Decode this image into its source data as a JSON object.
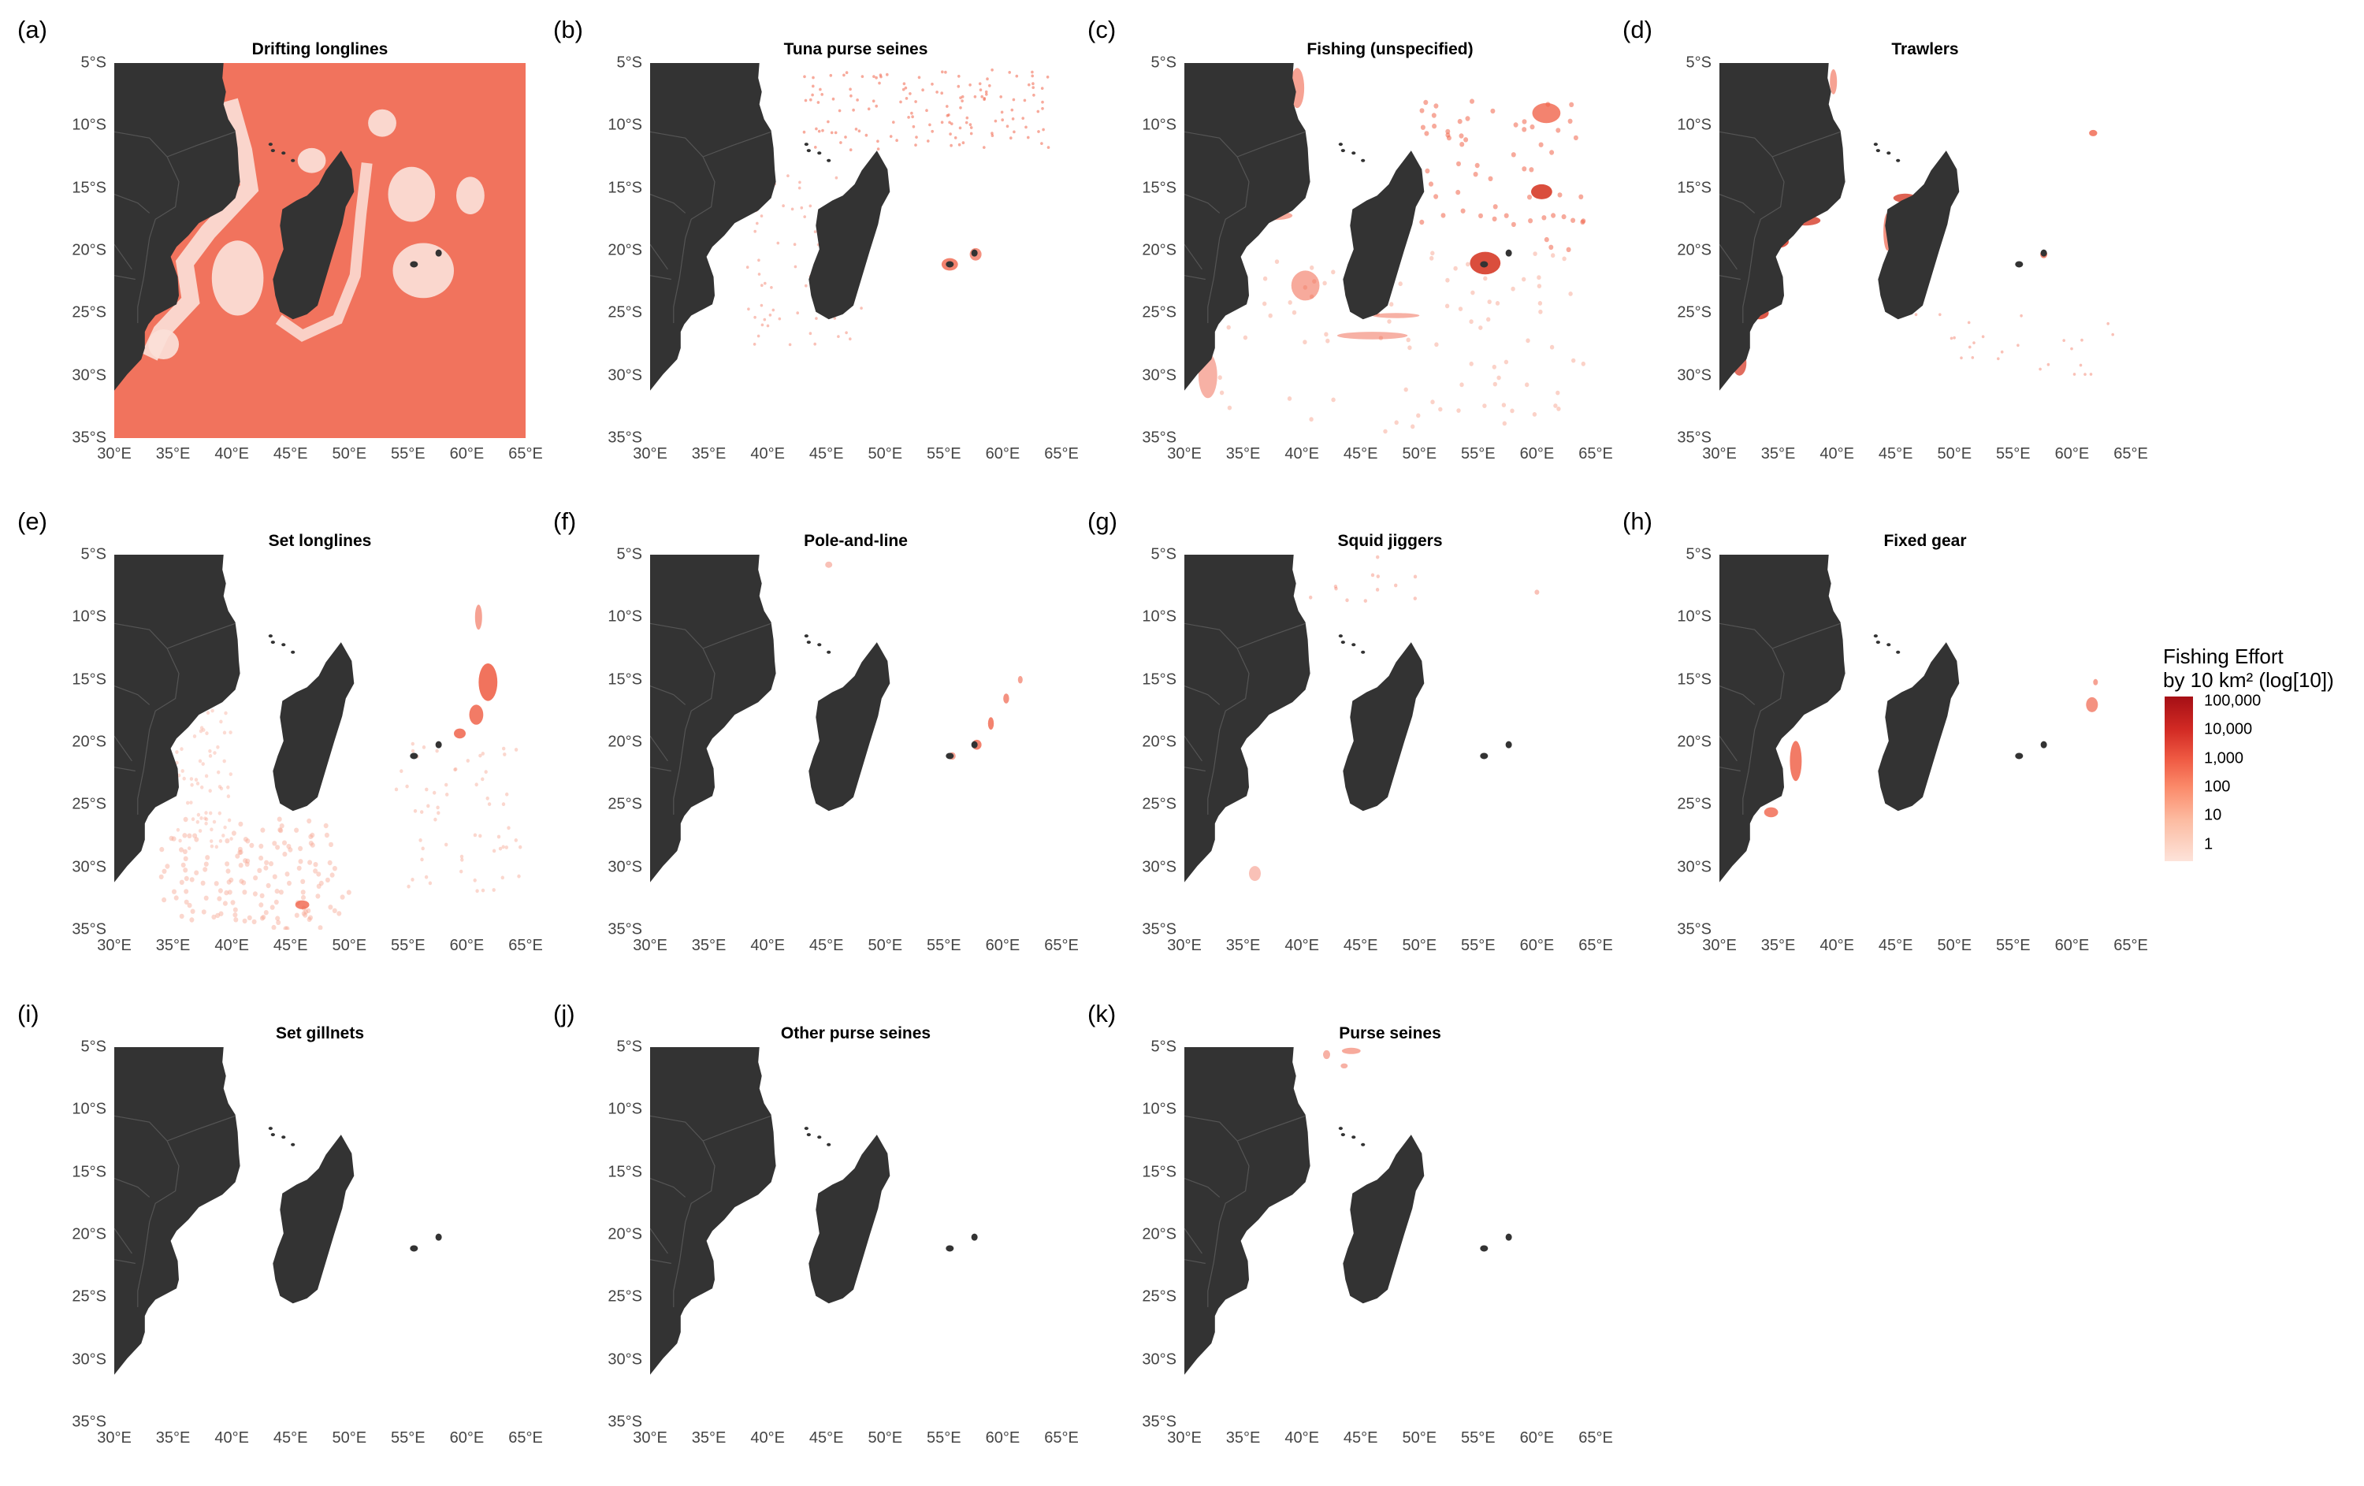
{
  "map_extent": {
    "lon": [
      30,
      65
    ],
    "lat": [
      -35,
      -5
    ]
  },
  "axes": {
    "x_ticks": [
      "30°E",
      "35°E",
      "40°E",
      "45°E",
      "50°E",
      "55°E",
      "60°E",
      "65°E"
    ],
    "y_ticks": [
      "5°S",
      "10°S",
      "15°S",
      "20°S",
      "25°S",
      "30°S",
      "35°S"
    ]
  },
  "colors": {
    "land": "#333333",
    "ocean": "#ffffff",
    "effort_low": "#fde3da",
    "effort_high": "#a50f15",
    "fill_general": "#f0644b"
  },
  "panels": [
    {
      "letter": "(a)",
      "title": "Drifting longlines",
      "effort_pattern": "near-complete basin coverage"
    },
    {
      "letter": "(b)",
      "title": "Tuna purse seines",
      "effort_pattern": "scattered offshore north"
    },
    {
      "letter": "(c)",
      "title": "Fishing (unspecified)",
      "effort_pattern": "scattered basin-wide, dense near Mascarenes"
    },
    {
      "letter": "(d)",
      "title": "Trawlers",
      "effort_pattern": "coastal Mozambique and west Madagascar"
    },
    {
      "letter": "(e)",
      "title": "Set longlines",
      "effort_pattern": "southern basin and east of Mauritius"
    },
    {
      "letter": "(f)",
      "title": "Pole-and-line",
      "effort_pattern": "sparse near Mauritius"
    },
    {
      "letter": "(g)",
      "title": "Squid jiggers",
      "effort_pattern": "very sparse"
    },
    {
      "letter": "(h)",
      "title": "Fixed gear",
      "effort_pattern": "southern Mozambique coast"
    },
    {
      "letter": "(i)",
      "title": "Set gillnets",
      "effort_pattern": "almost none"
    },
    {
      "letter": "(j)",
      "title": "Other purse seines",
      "effort_pattern": "none"
    },
    {
      "letter": "(k)",
      "title": "Purse seines",
      "effort_pattern": "few points north"
    }
  ],
  "legend": {
    "title_line1": "Fishing Effort",
    "title_line2": "by 10 km² (log[10])",
    "labels": [
      "100,000",
      "10,000",
      "1,000",
      "100",
      "10",
      "1"
    ]
  },
  "chart_data": {
    "type": "heatmap",
    "title": "",
    "xlabel": "",
    "ylabel": "",
    "xlim": [
      30,
      65
    ],
    "ylim": [
      -35,
      -5
    ],
    "scale": "log10",
    "scale_range": [
      1,
      100000
    ],
    "legend_position": "right"
  }
}
